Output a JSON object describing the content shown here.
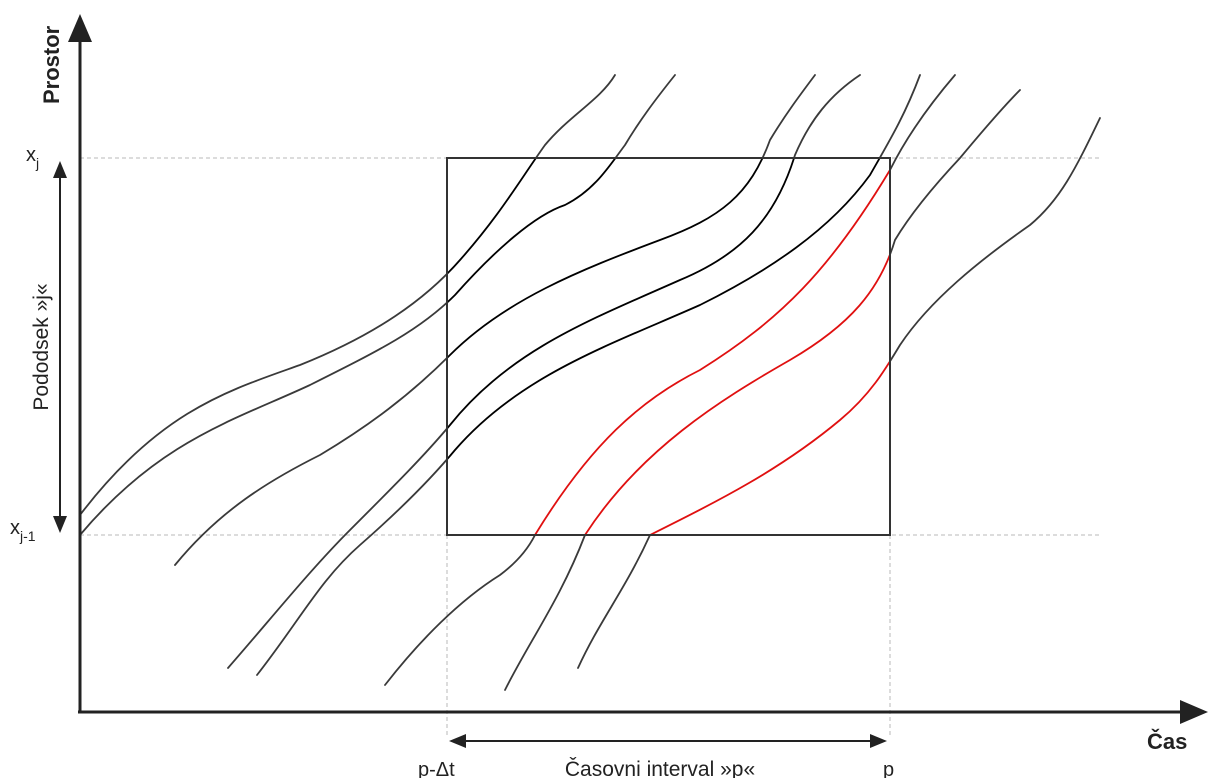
{
  "axes": {
    "y_title": "Prostor",
    "x_title": "Čas"
  },
  "labels": {
    "xj_base": "x",
    "xj_sub": "j",
    "xj1_base": "x",
    "xj1_sub": "j-1",
    "subsection": "Pododsek »j«",
    "t_start": "p-Δt",
    "t_end": "p",
    "interval": "Časovni interval »p«"
  },
  "colors": {
    "axis": "#222222",
    "box": "#333333",
    "trajectory_outside": "#3a3a3a",
    "trajectory_inside": "#000000",
    "trajectory_highlight": "#e01010",
    "guide": "#b8b8b8"
  }
}
